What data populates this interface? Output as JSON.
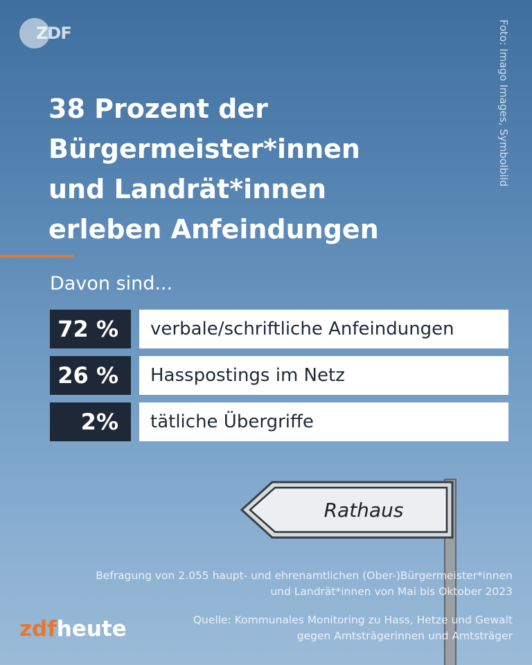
{
  "logo": {
    "text": "ZDF"
  },
  "photo_credit": "Foto: Imago Images, Symbolbild",
  "headline": {
    "lines": [
      "38 Prozent der",
      "Bürgermeister*innen",
      "und Landrät*innen",
      "erleben Anfeindungen"
    ]
  },
  "subhead": "Davon sind...",
  "sign_text": "Rathaus",
  "footnote": {
    "lines": [
      "Befragung von 2.055 haupt- und ehrenamtlichen (Ober-)Bürgermeister*innen",
      "und Landrät*innen von Mai bis Oktober 2023"
    ]
  },
  "source": {
    "lines": [
      "Quelle: Kommunales Monitoring zu Hass, Hetze und Gewalt",
      "gegen Amtsträgerinnen und Amtsträger"
    ]
  },
  "brand": {
    "part1": "zdf",
    "part2": "heute"
  },
  "colors": {
    "accent": "#e8772e",
    "dark_box": "#1f2836",
    "label_bg": "#ffffff"
  },
  "chart_data": {
    "type": "table",
    "categories": [
      "verbale/schriftliche Anfeindungen",
      "Hasspostings im Netz",
      "tätliche Übergriffe"
    ],
    "values": [
      72,
      26,
      2
    ],
    "value_labels": [
      "72 %",
      "26 %",
      "2%"
    ]
  }
}
